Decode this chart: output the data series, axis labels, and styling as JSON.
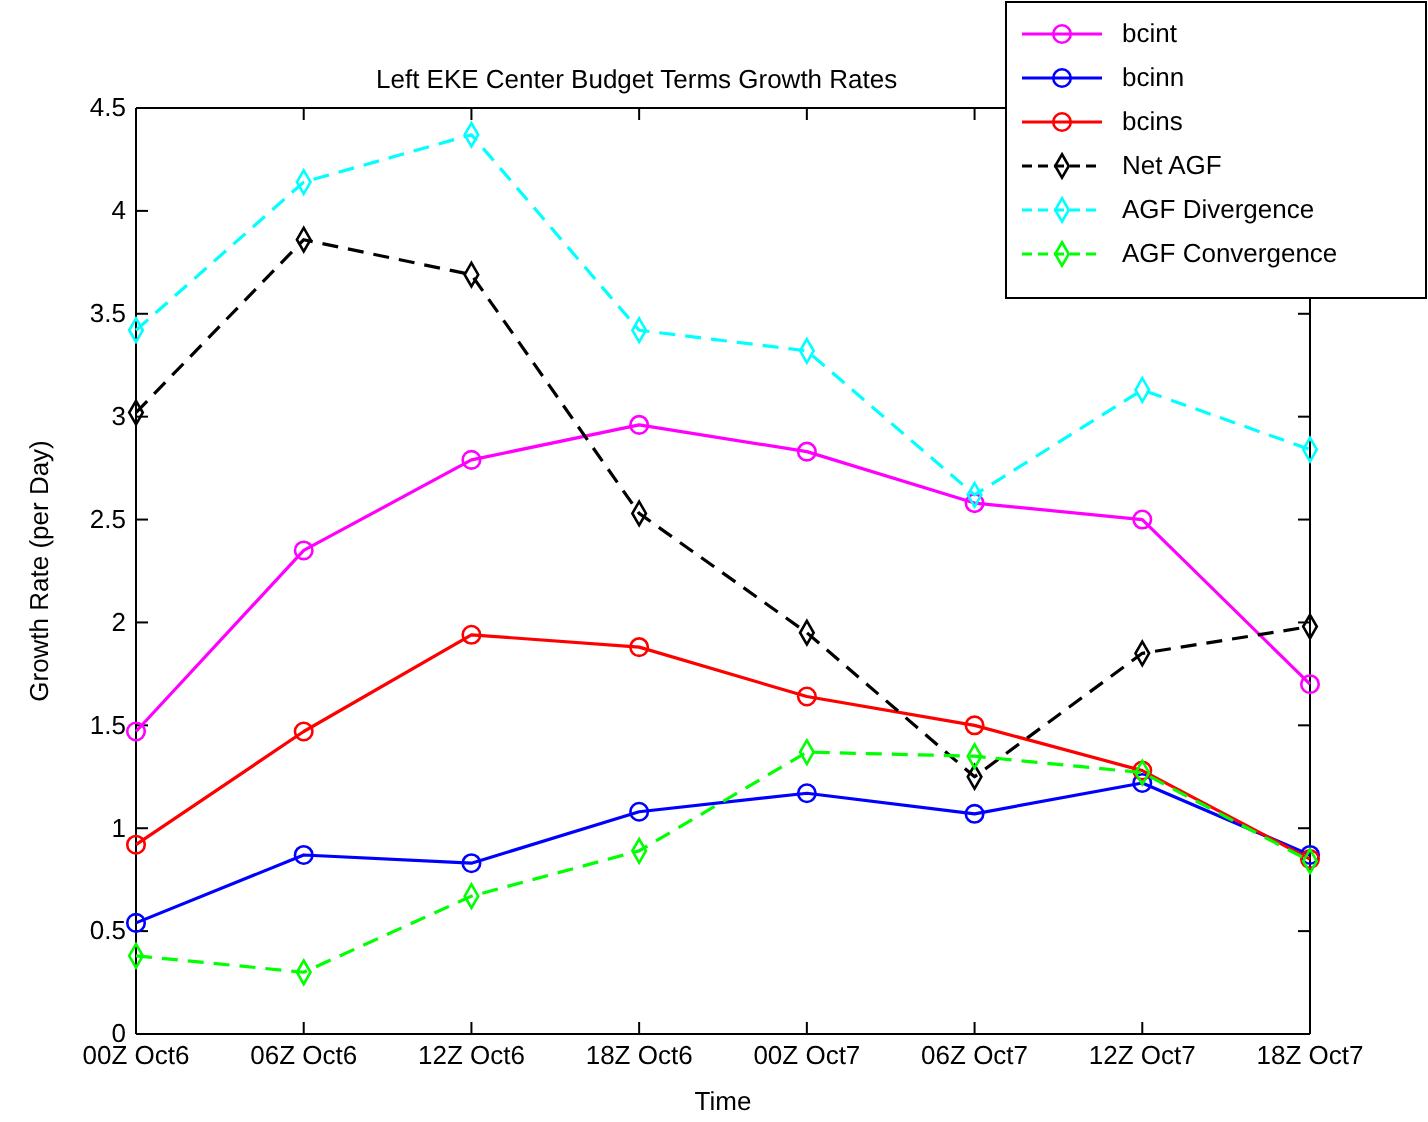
{
  "chart_data": {
    "type": "line",
    "title": "Left EKE Center Budget Terms Growth Rates",
    "xlabel": "Time",
    "ylabel": "Growth Rate (per Day)",
    "categories": [
      "00Z Oct6",
      "06Z Oct6",
      "12Z Oct6",
      "18Z Oct6",
      "00Z Oct7",
      "06Z Oct7",
      "12Z Oct7",
      "18Z Oct7"
    ],
    "ylim": [
      0,
      4.5
    ],
    "yticks": [
      0,
      0.5,
      1,
      1.5,
      2,
      2.5,
      3,
      3.5,
      4,
      4.5
    ],
    "grid": false,
    "legend": "top right",
    "series": [
      {
        "name": "bcint",
        "color": "#ff00ff",
        "marker": "circle",
        "line_style": "solid",
        "values": [
          1.47,
          2.35,
          2.79,
          2.96,
          2.83,
          2.58,
          2.5,
          1.7
        ]
      },
      {
        "name": "bcinn",
        "color": "#0000ff",
        "marker": "circle",
        "line_style": "solid",
        "values": [
          0.54,
          0.87,
          0.83,
          1.08,
          1.17,
          1.07,
          1.22,
          0.87
        ]
      },
      {
        "name": "bcins",
        "color": "#ff0000",
        "marker": "circle",
        "line_style": "solid",
        "values": [
          0.92,
          1.47,
          1.94,
          1.88,
          1.64,
          1.5,
          1.28,
          0.85
        ]
      },
      {
        "name": "Net AGF",
        "color": "#000000",
        "marker": "diamond",
        "line_style": "dashed",
        "values": [
          3.02,
          3.86,
          3.69,
          2.53,
          1.95,
          1.25,
          1.85,
          1.98
        ]
      },
      {
        "name": "AGF Divergence",
        "color": "#00ffff",
        "marker": "diamond",
        "line_style": "dashed",
        "values": [
          3.42,
          4.14,
          4.37,
          3.42,
          3.32,
          2.62,
          3.13,
          2.84
        ]
      },
      {
        "name": "AGF Convergence",
        "color": "#00ff00",
        "marker": "diamond",
        "line_style": "dashed",
        "values": [
          0.38,
          0.3,
          0.67,
          0.89,
          1.37,
          1.35,
          1.27,
          0.84
        ]
      }
    ]
  }
}
